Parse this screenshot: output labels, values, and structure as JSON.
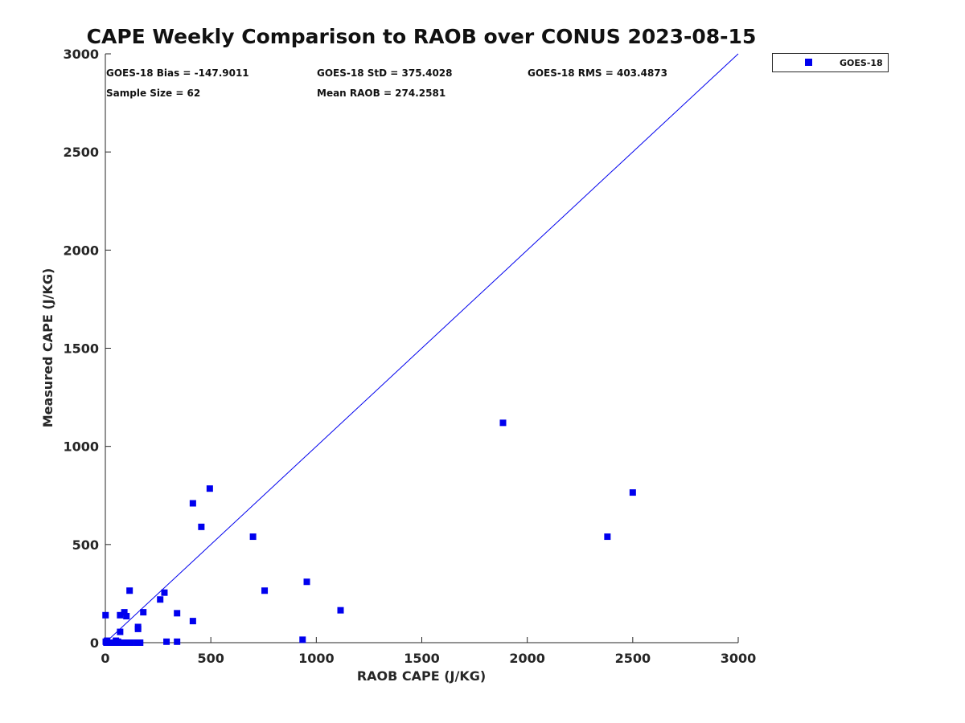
{
  "chart_data": {
    "type": "scatter",
    "title": "CAPE Weekly Comparison to RAOB over CONUS 2023-08-15",
    "xlabel": "RAOB CAPE (J/KG)",
    "ylabel": "Measured CAPE (J/KG)",
    "xlim": [
      0,
      3000
    ],
    "ylim": [
      0,
      3000
    ],
    "xticks": [
      0,
      500,
      1000,
      1500,
      2000,
      2500,
      3000
    ],
    "yticks": [
      0,
      500,
      1000,
      1500,
      2000,
      2500,
      3000
    ],
    "grid": false,
    "legend_position": "outside-top-right",
    "one_to_one_line": true,
    "series": [
      {
        "name": "GOES-18",
        "color": "#0000ee",
        "marker": "square",
        "points": [
          [
            1,
            140
          ],
          [
            2,
            5
          ],
          [
            5,
            0
          ],
          [
            8,
            10
          ],
          [
            15,
            0
          ],
          [
            25,
            0
          ],
          [
            35,
            0
          ],
          [
            45,
            0
          ],
          [
            50,
            10
          ],
          [
            55,
            0
          ],
          [
            60,
            5
          ],
          [
            65,
            0
          ],
          [
            70,
            55
          ],
          [
            70,
            140
          ],
          [
            80,
            0
          ],
          [
            90,
            0
          ],
          [
            90,
            155
          ],
          [
            100,
            0
          ],
          [
            100,
            135
          ],
          [
            110,
            0
          ],
          [
            115,
            265
          ],
          [
            120,
            0
          ],
          [
            150,
            0
          ],
          [
            155,
            70
          ],
          [
            155,
            80
          ],
          [
            165,
            0
          ],
          [
            180,
            155
          ],
          [
            260,
            220
          ],
          [
            280,
            255
          ],
          [
            290,
            5
          ],
          [
            340,
            5
          ],
          [
            340,
            150
          ],
          [
            415,
            110
          ],
          [
            415,
            710
          ],
          [
            455,
            590
          ],
          [
            495,
            785
          ],
          [
            700,
            540
          ],
          [
            755,
            265
          ],
          [
            935,
            15
          ],
          [
            955,
            310
          ],
          [
            1115,
            165
          ],
          [
            1885,
            1120
          ],
          [
            2380,
            540
          ],
          [
            2500,
            765
          ]
        ]
      }
    ],
    "stats": {
      "bias": "GOES-18 Bias = -147.9011",
      "std": "GOES-18 StD = 375.4028",
      "rms": "GOES-18 RMS = 403.4873",
      "sample_size": "Sample Size = 62",
      "mean_raob": "Mean RAOB = 274.2581"
    },
    "legend": {
      "label": "GOES-18"
    }
  }
}
